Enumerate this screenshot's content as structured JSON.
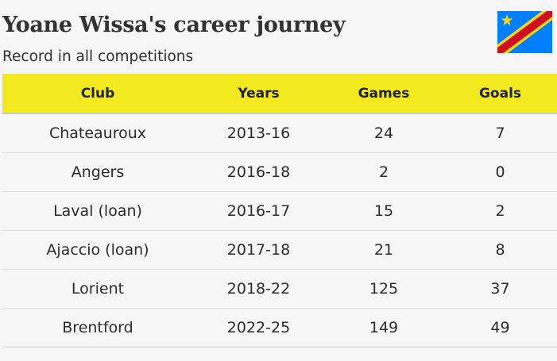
{
  "header": {
    "title": "Yoane Wissa's career journey",
    "subtitle": "Record in all competitions",
    "flag_icon": "dr-congo-flag-icon"
  },
  "colors": {
    "header_bg": "#f2ea1e",
    "page_bg": "#f6f6f6",
    "flag_blue": "#007fff",
    "flag_red": "#ce1021",
    "flag_yellow": "#f7d618"
  },
  "table": {
    "columns": [
      "Club",
      "Years",
      "Games",
      "Goals"
    ],
    "rows": [
      [
        "Chateauroux",
        "2013-16",
        "24",
        "7"
      ],
      [
        "Angers",
        "2016-18",
        "2",
        "0"
      ],
      [
        "Laval (loan)",
        "2016-17",
        "15",
        "2"
      ],
      [
        "Ajaccio (loan)",
        "2017-18",
        "21",
        "8"
      ],
      [
        "Lorient",
        "2018-22",
        "125",
        "37"
      ],
      [
        "Brentford",
        "2022-25",
        "149",
        "49"
      ]
    ]
  }
}
